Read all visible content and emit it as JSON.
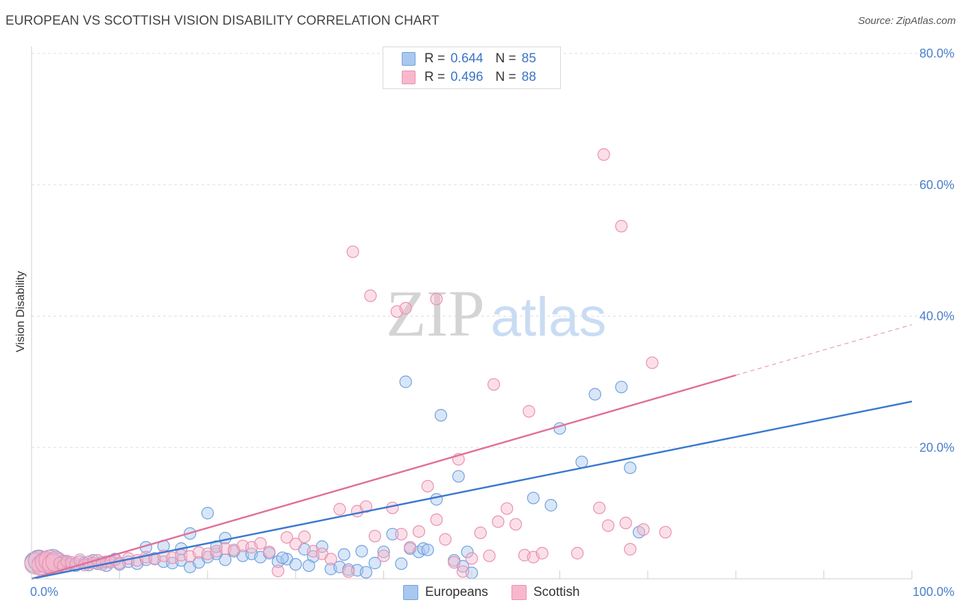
{
  "title": "EUROPEAN VS SCOTTISH VISION DISABILITY CORRELATION CHART",
  "source": "Source: ZipAtlas.com",
  "watermark": {
    "zip": "ZIP",
    "atlas": "atlas"
  },
  "legend": {
    "rows": [
      {
        "r_label": "R =",
        "r_value": "0.644",
        "n_label": "N =",
        "n_value": "85"
      },
      {
        "r_label": "R =",
        "r_value": "0.496",
        "n_label": "N =",
        "n_value": "88"
      }
    ]
  },
  "bottom_legend": {
    "europeans": "Europeans",
    "scottish": "Scottish"
  },
  "colors": {
    "europeans_fill": "#a8c8f0",
    "europeans_stroke": "#6fa0dc",
    "europeans_line": "#3a78d0",
    "scottish_fill": "#f7b8cd",
    "scottish_stroke": "#e890ae",
    "scottish_line": "#e0709a",
    "axis_text": "#4a7fcb",
    "grid": "#dddddd"
  },
  "chart_data": {
    "type": "scatter",
    "title": "EUROPEAN VS SCOTTISH VISION DISABILITY CORRELATION CHART",
    "xlabel": "",
    "ylabel": "Vision Disability",
    "xlim": [
      0,
      100
    ],
    "ylim": [
      0,
      80
    ],
    "x_tick_labels": [
      "0.0%",
      "100.0%"
    ],
    "y_ticks": [
      20,
      40,
      60,
      80
    ],
    "y_tick_labels": [
      "20.0%",
      "40.0%",
      "60.0%",
      "80.0%"
    ],
    "grid": true,
    "series": [
      {
        "name": "Europeans",
        "r": 0.644,
        "n": 85,
        "trend": {
          "x": [
            0,
            100
          ],
          "y": [
            0,
            27
          ]
        },
        "points": [
          [
            0.4,
            2.5
          ],
          [
            0.8,
            2.8
          ],
          [
            1.2,
            2.2
          ],
          [
            1.6,
            2.6
          ],
          [
            2.0,
            2.3
          ],
          [
            2.4,
            2.9
          ],
          [
            2.8,
            2.4
          ],
          [
            3.2,
            2.1
          ],
          [
            3.6,
            2.7
          ],
          [
            4.0,
            2.5
          ],
          [
            4.5,
            2.2
          ],
          [
            5.0,
            2.0
          ],
          [
            5.5,
            2.6
          ],
          [
            6.0,
            2.4
          ],
          [
            6.5,
            2.1
          ],
          [
            7.0,
            2.8
          ],
          [
            7.5,
            2.3
          ],
          [
            8.0,
            2.5
          ],
          [
            8.5,
            2.0
          ],
          [
            9.0,
            2.7
          ],
          [
            9.5,
            3.0
          ],
          [
            10.0,
            2.2
          ],
          [
            11.0,
            2.6
          ],
          [
            12.0,
            2.3
          ],
          [
            13.0,
            2.9
          ],
          [
            14.0,
            3.1
          ],
          [
            15.0,
            2.6
          ],
          [
            16.0,
            2.4
          ],
          [
            17.0,
            2.8
          ],
          [
            18.0,
            1.8
          ],
          [
            19.0,
            2.5
          ],
          [
            20.0,
            3.3
          ],
          [
            21.0,
            3.8
          ],
          [
            22.0,
            2.9
          ],
          [
            23.0,
            4.2
          ],
          [
            24.0,
            3.5
          ],
          [
            25.0,
            3.8
          ],
          [
            26.0,
            3.3
          ],
          [
            27.0,
            3.9
          ],
          [
            28.0,
            2.6
          ],
          [
            29.0,
            3.0
          ],
          [
            30.0,
            2.2
          ],
          [
            31.0,
            4.5
          ],
          [
            32.0,
            3.4
          ],
          [
            33.0,
            4.9
          ],
          [
            34.0,
            1.5
          ],
          [
            35.0,
            1.8
          ],
          [
            36.0,
            1.4
          ],
          [
            37.0,
            1.3
          ],
          [
            38.0,
            1.0
          ],
          [
            39.0,
            2.4
          ],
          [
            40.0,
            4.1
          ],
          [
            41.0,
            6.8
          ],
          [
            42.0,
            2.3
          ],
          [
            43.0,
            4.6
          ],
          [
            44.0,
            4.1
          ],
          [
            44.5,
            4.6
          ],
          [
            45.0,
            4.4
          ],
          [
            46.0,
            12.1
          ],
          [
            48.0,
            2.8
          ],
          [
            49.0,
            1.9
          ],
          [
            50.0,
            0.9
          ],
          [
            49.5,
            4.1
          ],
          [
            13.0,
            4.8
          ],
          [
            15.0,
            5.0
          ],
          [
            17.0,
            4.6
          ],
          [
            18.0,
            6.9
          ],
          [
            20.0,
            10.0
          ],
          [
            21.0,
            4.9
          ],
          [
            22.0,
            6.2
          ],
          [
            35.5,
            3.7
          ],
          [
            37.5,
            4.2
          ],
          [
            28.5,
            3.2
          ],
          [
            31.5,
            2.0
          ],
          [
            42.5,
            30.0
          ],
          [
            46.5,
            24.9
          ],
          [
            48.5,
            15.6
          ],
          [
            60.0,
            22.9
          ],
          [
            62.5,
            17.8
          ],
          [
            57.0,
            12.3
          ],
          [
            59.0,
            11.2
          ],
          [
            64.0,
            28.1
          ],
          [
            67.0,
            29.2
          ],
          [
            68.0,
            16.9
          ],
          [
            69.0,
            7.1
          ]
        ]
      },
      {
        "name": "Scottish",
        "r": 0.496,
        "n": 88,
        "trend": {
          "x": [
            0,
            80
          ],
          "y": [
            0,
            31
          ]
        },
        "trend_dashed": {
          "x": [
            80,
            100
          ],
          "y": [
            31,
            38.7
          ]
        },
        "points": [
          [
            0.4,
            2.3
          ],
          [
            0.8,
            2.7
          ],
          [
            1.2,
            2.0
          ],
          [
            1.6,
            2.5
          ],
          [
            2.0,
            2.8
          ],
          [
            2.4,
            2.2
          ],
          [
            2.8,
            2.6
          ],
          [
            3.2,
            2.4
          ],
          [
            3.6,
            2.0
          ],
          [
            4.0,
            2.7
          ],
          [
            4.5,
            2.5
          ],
          [
            5.0,
            2.3
          ],
          [
            5.5,
            2.9
          ],
          [
            6.0,
            2.1
          ],
          [
            6.5,
            2.6
          ],
          [
            7.0,
            2.4
          ],
          [
            7.5,
            2.8
          ],
          [
            8.0,
            2.2
          ],
          [
            8.5,
            2.6
          ],
          [
            9.0,
            2.5
          ],
          [
            9.5,
            2.9
          ],
          [
            10.0,
            2.4
          ],
          [
            11.0,
            3.1
          ],
          [
            12.0,
            2.8
          ],
          [
            13.0,
            3.3
          ],
          [
            14.0,
            3.0
          ],
          [
            15.0,
            3.5
          ],
          [
            16.0,
            3.2
          ],
          [
            17.0,
            3.6
          ],
          [
            18.0,
            3.4
          ],
          [
            19.0,
            4.0
          ],
          [
            20.0,
            3.8
          ],
          [
            21.0,
            4.2
          ],
          [
            22.0,
            4.6
          ],
          [
            23.0,
            4.4
          ],
          [
            24.0,
            5.0
          ],
          [
            25.0,
            4.8
          ],
          [
            26.0,
            5.4
          ],
          [
            27.0,
            4.1
          ],
          [
            28.0,
            1.2
          ],
          [
            29.0,
            6.3
          ],
          [
            30.0,
            5.3
          ],
          [
            31.0,
            6.4
          ],
          [
            32.0,
            4.2
          ],
          [
            33.0,
            3.8
          ],
          [
            34.0,
            3.0
          ],
          [
            35.0,
            10.6
          ],
          [
            36.0,
            1.1
          ],
          [
            37.0,
            10.3
          ],
          [
            38.0,
            11.0
          ],
          [
            39.0,
            6.5
          ],
          [
            40.0,
            3.5
          ],
          [
            41.0,
            10.8
          ],
          [
            42.0,
            6.8
          ],
          [
            43.0,
            4.8
          ],
          [
            44.0,
            7.2
          ],
          [
            45.0,
            14.1
          ],
          [
            46.0,
            9.0
          ],
          [
            47.0,
            6.0
          ],
          [
            48.0,
            2.5
          ],
          [
            49.0,
            1.1
          ],
          [
            50.0,
            3.1
          ],
          [
            51.0,
            7.0
          ],
          [
            52.0,
            3.5
          ],
          [
            53.0,
            8.7
          ],
          [
            54.0,
            10.7
          ],
          [
            55.0,
            8.3
          ],
          [
            56.0,
            3.6
          ],
          [
            57.0,
            3.3
          ],
          [
            58.0,
            3.9
          ],
          [
            36.5,
            49.8
          ],
          [
            38.5,
            43.1
          ],
          [
            41.5,
            40.7
          ],
          [
            42.5,
            41.2
          ],
          [
            46.0,
            42.6
          ],
          [
            48.5,
            18.2
          ],
          [
            52.5,
            29.6
          ],
          [
            56.5,
            25.5
          ],
          [
            65.0,
            64.6
          ],
          [
            67.0,
            53.7
          ],
          [
            70.5,
            32.9
          ],
          [
            65.5,
            8.1
          ],
          [
            67.5,
            8.5
          ],
          [
            69.5,
            7.5
          ],
          [
            72.0,
            7.1
          ],
          [
            68.0,
            4.5
          ],
          [
            62.0,
            3.9
          ],
          [
            64.5,
            10.8
          ]
        ]
      }
    ]
  }
}
